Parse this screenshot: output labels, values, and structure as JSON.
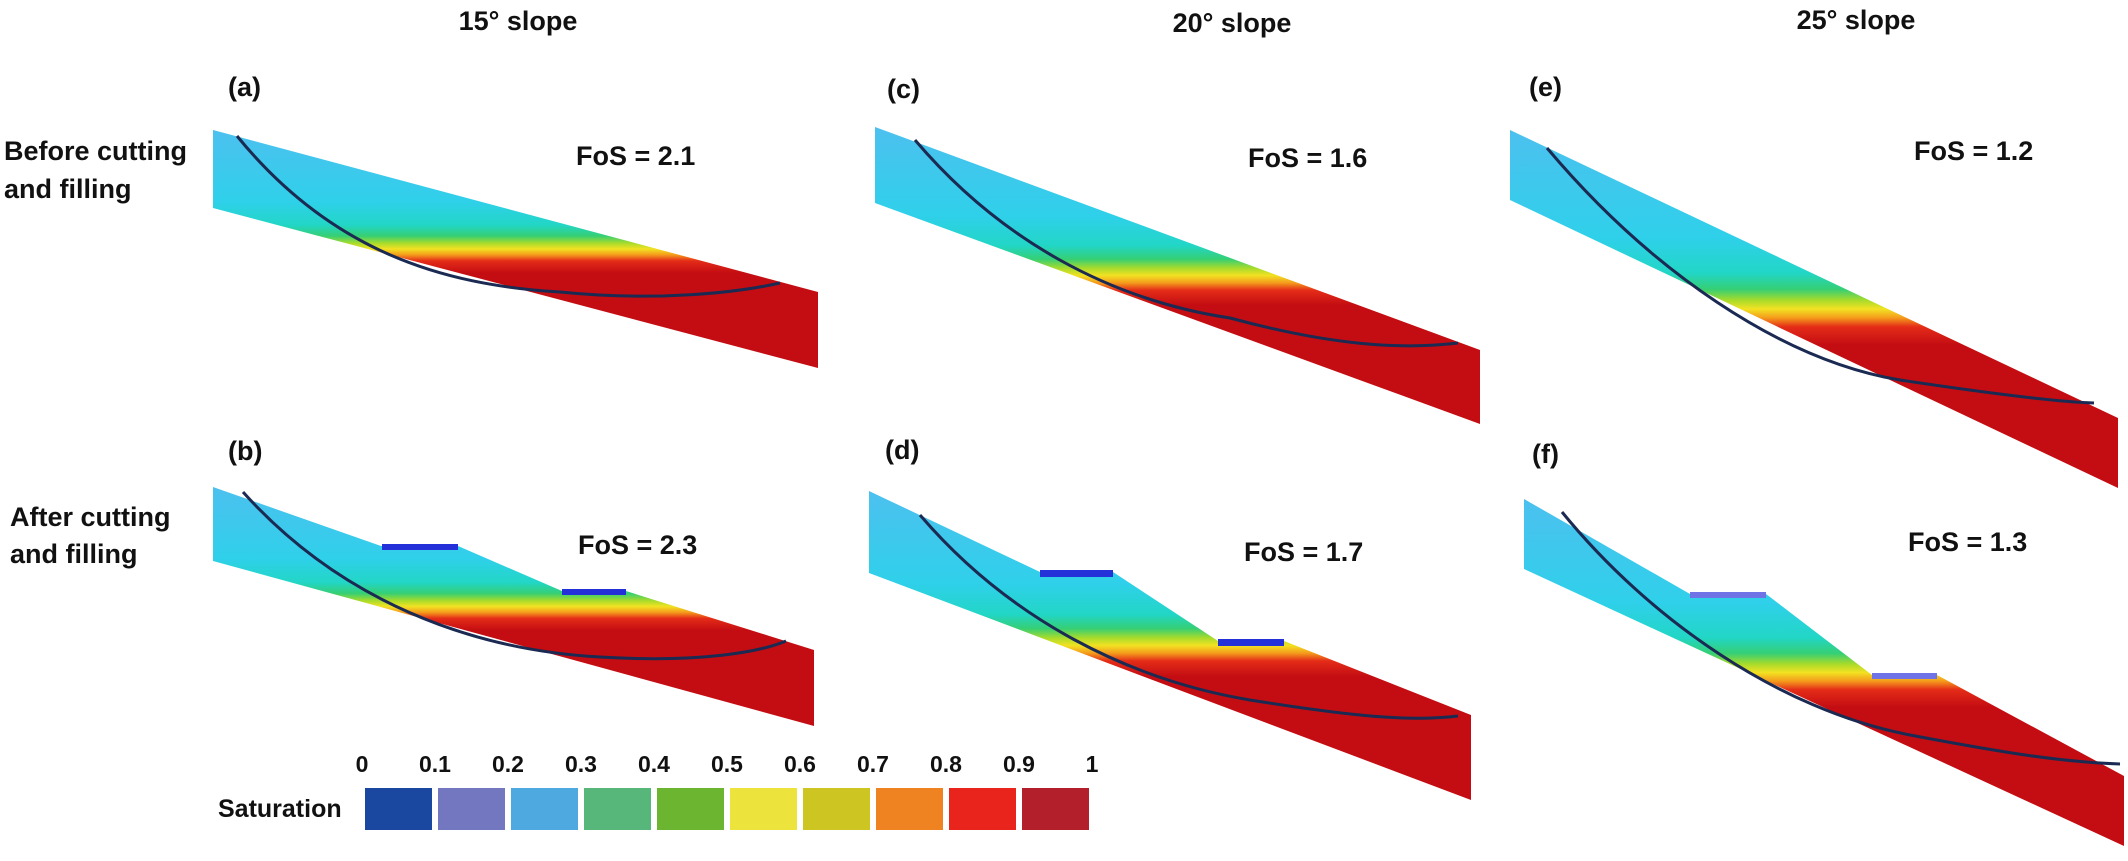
{
  "columns": [
    "15° slope",
    "20° slope",
    "25° slope"
  ],
  "rows": [
    {
      "line1": "Before cutting",
      "line2": "and filling"
    },
    {
      "line1": "After cutting",
      "line2": "and filling"
    }
  ],
  "panels": [
    {
      "label": "(a)",
      "fos": "FoS = 2.1"
    },
    {
      "label": "(b)",
      "fos": "FoS = 2.3"
    },
    {
      "label": "(c)",
      "fos": "FoS = 1.6"
    },
    {
      "label": "(d)",
      "fos": "FoS = 1.7"
    },
    {
      "label": "(e)",
      "fos": "FoS = 1.2"
    },
    {
      "label": "(f)",
      "fos": "FoS = 1.3"
    }
  ],
  "colorbar": {
    "title": "Saturation",
    "ticks": [
      "0",
      "0.1",
      "0.2",
      "0.3",
      "0.4",
      "0.5",
      "0.6",
      "0.7",
      "0.8",
      "0.9",
      "1"
    ],
    "colors": [
      "#1a47a0",
      "#7277bf",
      "#4ea9e1",
      "#57b77b",
      "#6bb531",
      "#ece33c",
      "#ccc522",
      "#ef8221",
      "#e8241c",
      "#b31f2a"
    ]
  },
  "palette": {
    "saturated": "#c40d12",
    "dry": "#37c8ef",
    "slip_surface": "#1b2a52",
    "fill_material": "#2430d8"
  }
}
